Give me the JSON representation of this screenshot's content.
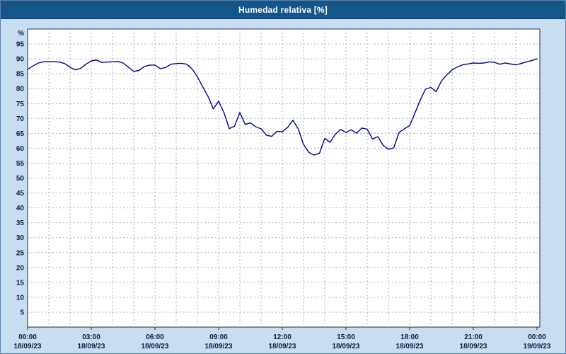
{
  "title_bar": {
    "title": "Humedad relativa [%]"
  },
  "colors": {
    "title_bg": "#14568A",
    "title_text": "#FFFFFF",
    "page_bg": "#C9DDF1",
    "plot_bg": "#FFFFFF",
    "plot_border": "#26264E",
    "grid": "#9FB2C8",
    "line": "#000090",
    "axis_text": "#101840"
  },
  "chart_data": {
    "type": "line",
    "title": "Humedad relativa [%]",
    "xlabel": "",
    "ylabel": "%",
    "ylim": [
      0,
      100
    ],
    "grid": "dashed",
    "legend": "none",
    "x_grid_interval_hours": 1,
    "y_ticks": [
      5,
      10,
      15,
      20,
      25,
      30,
      35,
      40,
      45,
      50,
      55,
      60,
      65,
      70,
      75,
      80,
      85,
      90,
      95
    ],
    "x_ticks": [
      {
        "hour": 0,
        "time": "00:00",
        "date": "18/09/23"
      },
      {
        "hour": 3,
        "time": "03:00",
        "date": "18/09/23"
      },
      {
        "hour": 6,
        "time": "06:00",
        "date": "18/09/23"
      },
      {
        "hour": 9,
        "time": "09:00",
        "date": "18/09/23"
      },
      {
        "hour": 12,
        "time": "12:00",
        "date": "18/09/23"
      },
      {
        "hour": 15,
        "time": "15:00",
        "date": "18/09/23"
      },
      {
        "hour": 18,
        "time": "18:00",
        "date": "18/09/23"
      },
      {
        "hour": 21,
        "time": "21:00",
        "date": "18/09/23"
      },
      {
        "hour": 24,
        "time": "00:00",
        "date": "19/09/23"
      }
    ],
    "series": [
      {
        "name": "Humedad relativa",
        "start_hour": 0,
        "step_hours": 0.25,
        "values": [
          86.5,
          87.6,
          88.6,
          89.0,
          89.0,
          89.1,
          88.9,
          88.4,
          87.2,
          86.3,
          86.8,
          88.2,
          89.3,
          89.6,
          88.8,
          88.9,
          89.0,
          89.1,
          88.6,
          87.2,
          85.8,
          86.1,
          87.4,
          87.9,
          87.9,
          86.7,
          87.1,
          88.2,
          88.4,
          88.5,
          88.2,
          86.6,
          84.0,
          80.6,
          77.4,
          73.2,
          75.8,
          72.0,
          66.6,
          67.4,
          72.0,
          68.0,
          68.5,
          67.2,
          66.5,
          64.4,
          64.0,
          65.7,
          65.5,
          67.0,
          69.4,
          66.5,
          61.3,
          58.6,
          57.7,
          58.3,
          63.3,
          62.0,
          64.7,
          66.3,
          65.3,
          66.2,
          65.0,
          66.8,
          66.4,
          63.1,
          63.9,
          61.0,
          59.7,
          60.1,
          65.3,
          66.5,
          67.6,
          71.8,
          76.2,
          79.8,
          80.4,
          79.0,
          82.6,
          84.6,
          86.3,
          87.3,
          88.0,
          88.3,
          88.6,
          88.5,
          88.6,
          89.0,
          88.8,
          88.2,
          88.6,
          88.3,
          88.0,
          88.4,
          89.0,
          89.4,
          90.0
        ]
      }
    ]
  }
}
